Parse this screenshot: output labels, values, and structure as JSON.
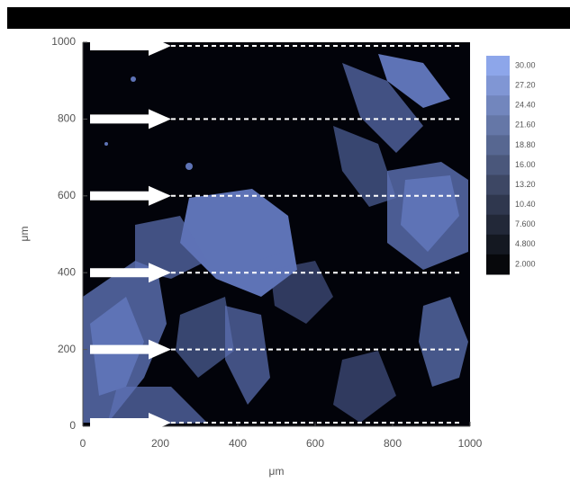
{
  "chart_data": {
    "type": "heatmap",
    "xlabel": "μm",
    "ylabel": "μm",
    "xlim": [
      0,
      1000
    ],
    "ylim": [
      0,
      1000
    ],
    "xticks": [
      0,
      200,
      400,
      600,
      800,
      1000
    ],
    "yticks": [
      0,
      200,
      400,
      600,
      800,
      1000
    ],
    "colorbar": {
      "lim": [
        0.6,
        31.4
      ],
      "colors": [
        "#000000",
        "#94aef5"
      ],
      "ticks": [
        {
          "value": 30,
          "label": "30.00"
        },
        {
          "value": 27.2,
          "label": "27.20"
        },
        {
          "value": 24.4,
          "label": "24.40"
        },
        {
          "value": 21.6,
          "label": "21.60"
        },
        {
          "value": 18.8,
          "label": "18.80"
        },
        {
          "value": 16,
          "label": "16.00"
        },
        {
          "value": 13.2,
          "label": "13.20"
        },
        {
          "value": 10.4,
          "label": "10.40"
        },
        {
          "value": 7.6,
          "label": "7.600"
        },
        {
          "value": 4.8,
          "label": "4.800"
        },
        {
          "value": 2,
          "label": "2.000"
        }
      ]
    }
  }
}
